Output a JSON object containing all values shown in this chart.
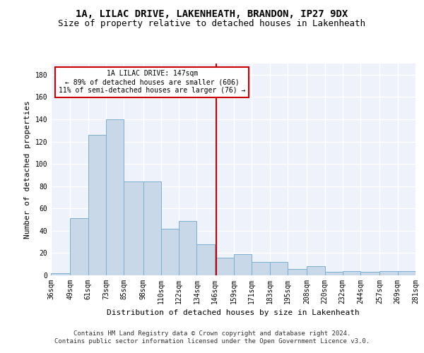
{
  "title": "1A, LILAC DRIVE, LAKENHEATH, BRANDON, IP27 9DX",
  "subtitle": "Size of property relative to detached houses in Lakenheath",
  "xlabel": "Distribution of detached houses by size in Lakenheath",
  "ylabel": "Number of detached properties",
  "bar_color": "#c8d8e8",
  "bar_edge_color": "#7bafd4",
  "background_color": "#eef2fa",
  "grid_color": "#ffffff",
  "vline_x": 147,
  "vline_color": "#cc0000",
  "annotation_text": "1A LILAC DRIVE: 147sqm\n← 89% of detached houses are smaller (606)\n11% of semi-detached houses are larger (76) →",
  "annotation_edge_color": "#cc0000",
  "bin_edges": [
    36,
    49,
    61,
    73,
    85,
    98,
    110,
    122,
    134,
    146,
    159,
    171,
    183,
    195,
    208,
    220,
    232,
    244,
    257,
    269,
    281
  ],
  "bin_labels": [
    "36sqm",
    "49sqm",
    "61sqm",
    "73sqm",
    "85sqm",
    "98sqm",
    "110sqm",
    "122sqm",
    "134sqm",
    "146sqm",
    "159sqm",
    "171sqm",
    "183sqm",
    "195sqm",
    "208sqm",
    "220sqm",
    "232sqm",
    "244sqm",
    "257sqm",
    "269sqm",
    "281sqm"
  ],
  "bar_heights": [
    2,
    51,
    126,
    140,
    84,
    84,
    42,
    49,
    28,
    16,
    19,
    12,
    12,
    6,
    8,
    3,
    4,
    3,
    4,
    4
  ],
  "ylim": [
    0,
    190
  ],
  "yticks": [
    0,
    20,
    40,
    60,
    80,
    100,
    120,
    140,
    160,
    180
  ],
  "footer_line1": "Contains HM Land Registry data © Crown copyright and database right 2024.",
  "footer_line2": "Contains public sector information licensed under the Open Government Licence v3.0.",
  "title_fontsize": 10,
  "subtitle_fontsize": 9,
  "axis_label_fontsize": 8,
  "tick_fontsize": 7,
  "annotation_fontsize": 7,
  "footer_fontsize": 6.5
}
